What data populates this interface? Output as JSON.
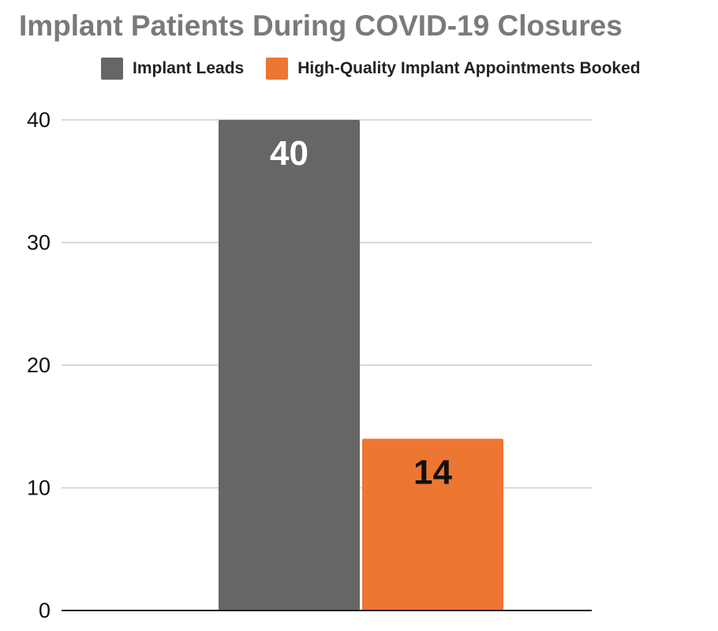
{
  "chart_data": {
    "type": "bar",
    "title": "Implant Patients During COVID-19 Closures",
    "categories": [
      ""
    ],
    "series": [
      {
        "name": "Implant Leads",
        "values": [
          40
        ],
        "color": "#666666",
        "label_color": "#ffffff"
      },
      {
        "name": "High-Quality Implant Appointments Booked",
        "values": [
          14
        ],
        "color": "#ed7632",
        "label_color": "#111111"
      }
    ],
    "ylim": [
      0,
      40
    ],
    "yticks": [
      0,
      10,
      20,
      30,
      40
    ],
    "data_labels": [
      "40",
      "14"
    ],
    "xlabel": "",
    "ylabel": "",
    "grid": true,
    "legend_position": "top"
  }
}
